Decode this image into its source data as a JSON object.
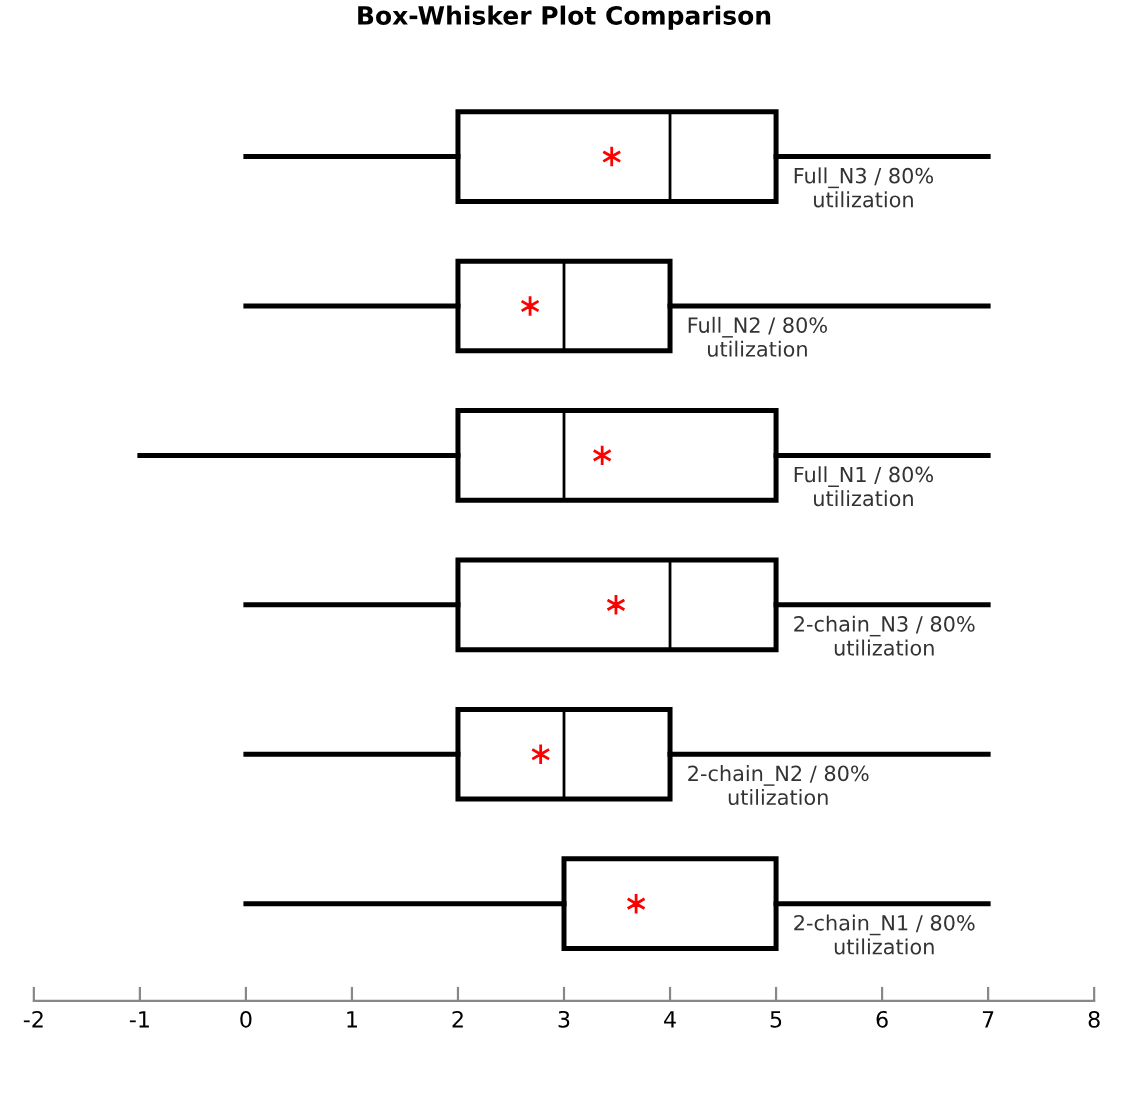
{
  "chart_data": {
    "type": "box",
    "title": "Box-Whisker Plot Comparison",
    "orientation": "horizontal",
    "categories": [
      "Full_N3 / 80%\nutilization",
      "Full_N2 / 80%\nutilization",
      "Full_N1 / 80%\nutilization",
      "2-chain_N3 / 80%\nutilization",
      "2-chain_N2 / 80%\nutilization",
      "2-chain_N1 / 80%\nutilization"
    ],
    "boxes": [
      {
        "low": 0,
        "q1": 2,
        "median": 4,
        "q3": 5,
        "high": 7,
        "mean": 3.45
      },
      {
        "low": 0,
        "q1": 2,
        "median": 3,
        "q3": 4,
        "high": 7,
        "mean": 2.68
      },
      {
        "low": -1,
        "q1": 2,
        "median": 3,
        "q3": 5,
        "high": 7,
        "mean": 3.36
      },
      {
        "low": 0,
        "q1": 2,
        "median": 4,
        "q3": 5,
        "high": 7,
        "mean": 3.49
      },
      {
        "low": 0,
        "q1": 2,
        "median": 3,
        "q3": 4,
        "high": 7,
        "mean": 2.78
      },
      {
        "low": 0,
        "q1": 3,
        "median": 3,
        "q3": 5,
        "high": 7,
        "mean": 3.68
      }
    ],
    "color": "#000000",
    "xlim": [
      -2,
      8
    ],
    "xticks": [
      -2,
      -1,
      0,
      1,
      2,
      3,
      4,
      5,
      6,
      7,
      8
    ],
    "tick_labels": "x",
    "grid": false,
    "legend": false
  }
}
